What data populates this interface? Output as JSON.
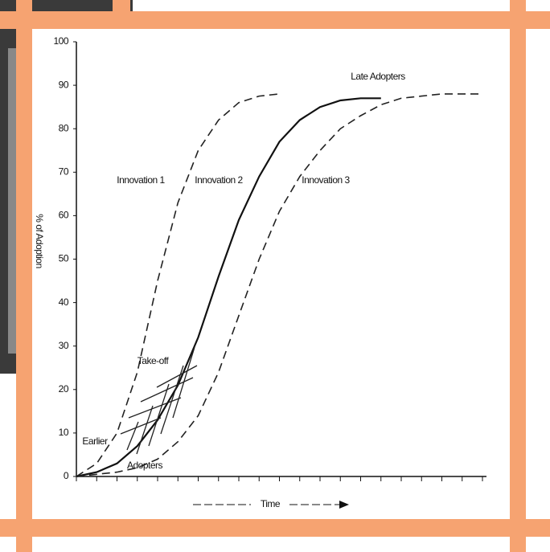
{
  "chart_data": {
    "type": "line",
    "ylabel": "% of Adoption",
    "xlabel": "Time",
    "categories": [
      null,
      null,
      null,
      null,
      null,
      null,
      null,
      null,
      null,
      null,
      null,
      null,
      null,
      null,
      null,
      null,
      null,
      null,
      null,
      null,
      null
    ],
    "series": [
      {
        "name": "Innovation 1",
        "color": "#222222",
        "line_style": "dashed",
        "values": [
          0,
          3,
          10,
          24,
          45,
          63,
          75,
          82,
          86,
          87.5,
          88,
          null,
          null,
          null,
          null,
          null,
          null,
          null,
          null,
          null,
          null
        ]
      },
      {
        "name": "Innovation 2",
        "color": "#111111",
        "line_style": "solid",
        "values": [
          0,
          1,
          3,
          7,
          13,
          21,
          32,
          46,
          59,
          69,
          77,
          82,
          85,
          86.5,
          87,
          87,
          null,
          null,
          null,
          null,
          null
        ]
      },
      {
        "name": "Innovation 3",
        "color": "#222222",
        "line_style": "dashed",
        "values": [
          0,
          0.5,
          1,
          2,
          4,
          8,
          14,
          24,
          37,
          50,
          61,
          69,
          75,
          80,
          83,
          85.5,
          87,
          87.5,
          88,
          88,
          88
        ]
      }
    ],
    "annotations": [
      "Late Adopters",
      "Take-off",
      "Earlier",
      "Adopters"
    ],
    "ylim": [
      0,
      100
    ],
    "yticks": [
      0,
      10,
      20,
      30,
      40,
      50,
      60,
      70,
      80,
      90,
      100
    ],
    "grid": false
  }
}
